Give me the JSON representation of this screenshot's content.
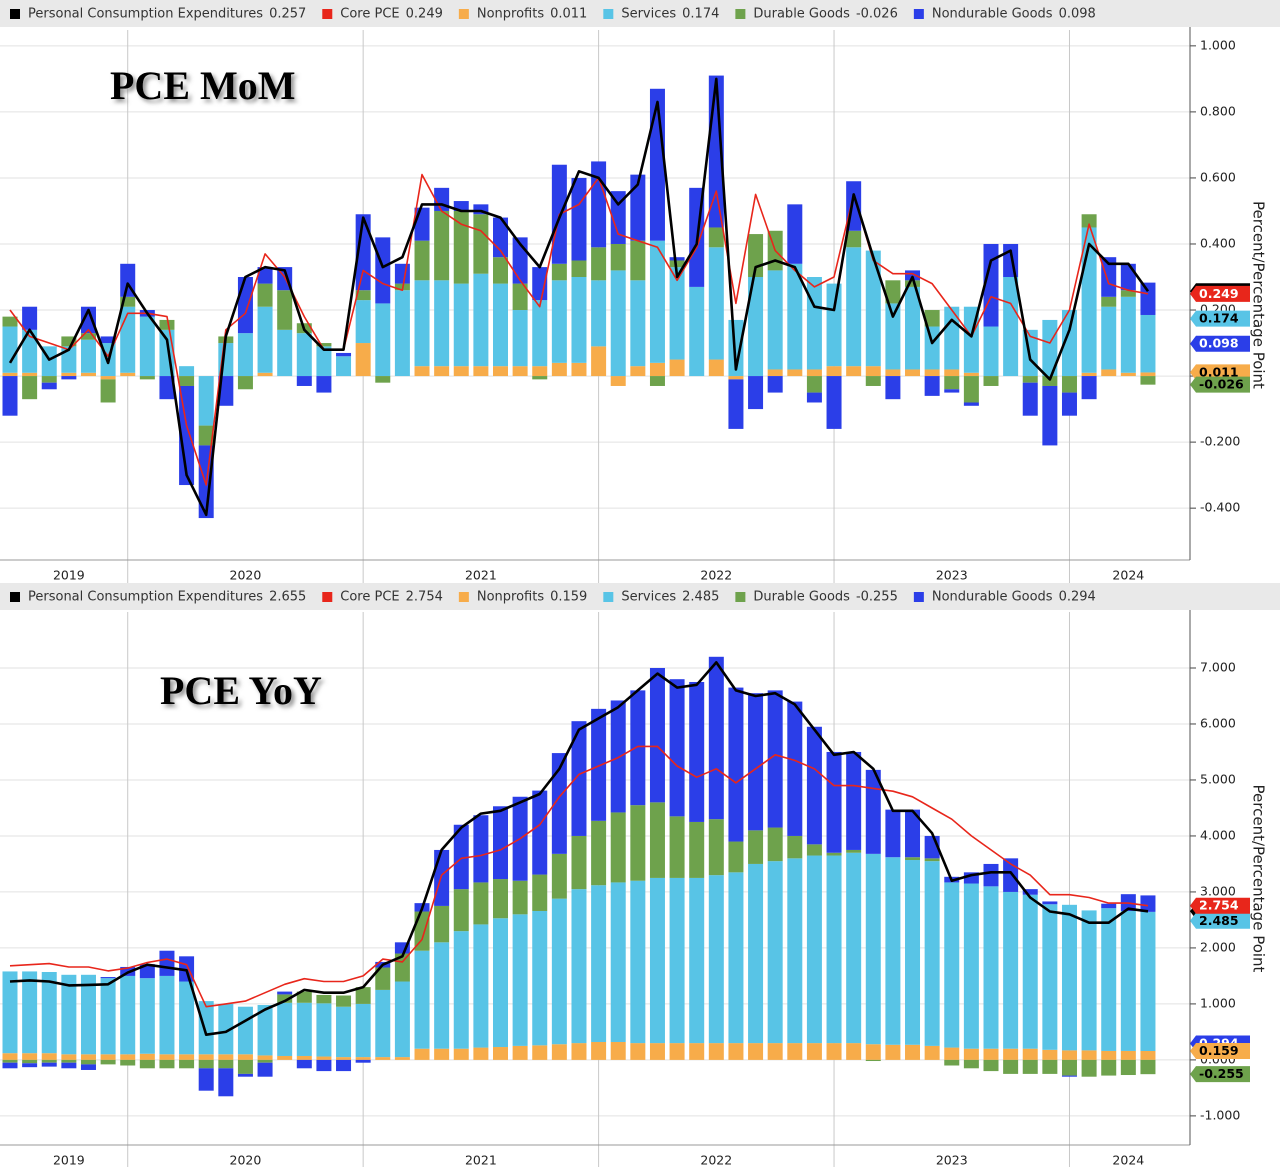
{
  "chart_data": [
    {
      "type": "bar",
      "title": "PCE MoM",
      "y_label": "Percent/Percentage Point",
      "stacked": true,
      "grid": true,
      "categories": [
        null,
        null,
        null,
        "2019",
        null,
        null,
        null,
        null,
        null,
        null,
        null,
        null,
        "2020",
        null,
        null,
        null,
        null,
        null,
        null,
        null,
        null,
        null,
        null,
        null,
        "2021",
        null,
        null,
        null,
        null,
        null,
        null,
        null,
        null,
        null,
        null,
        null,
        "2022",
        null,
        null,
        null,
        null,
        null,
        null,
        null,
        null,
        null,
        null,
        null,
        "2023",
        null,
        null,
        null,
        null,
        null,
        null,
        null,
        null,
        "2024",
        null
      ],
      "ylim": [
        -0.557,
        1.048
      ],
      "yticks": [
        {
          "value": -0.4,
          "label": "-0.400"
        },
        {
          "value": -0.2,
          "label": "-0.200"
        },
        {
          "value": 0,
          "label": "0.000"
        },
        {
          "value": 0.2,
          "label": "0.200"
        },
        {
          "value": 0.4,
          "label": "0.400"
        },
        {
          "value": 0.6,
          "label": "0.600"
        },
        {
          "value": 0.8,
          "label": "0.800"
        },
        {
          "value": 1,
          "label": "1.000"
        }
      ],
      "series": [
        {
          "name": "Personal Consumption Expenditures",
          "color": "#000000",
          "kind": "line",
          "values": [
            0.04,
            0.14,
            0.05,
            0.08,
            0.2,
            0.04,
            0.28,
            0.19,
            0.11,
            -0.3,
            -0.42,
            0.12,
            0.3,
            0.33,
            0.32,
            0.14,
            0.08,
            0.08,
            0.48,
            0.33,
            0.36,
            0.52,
            0.52,
            0.5,
            0.5,
            0.48,
            0.4,
            0.33,
            0.48,
            0.62,
            0.6,
            0.52,
            0.58,
            0.83,
            0.3,
            0.4,
            0.9,
            0.02,
            0.33,
            0.35,
            0.33,
            0.21,
            0.2,
            0.55,
            0.36,
            0.18,
            0.3,
            0.1,
            0.17,
            0.12,
            0.35,
            0.38,
            0.05,
            -0.01,
            0.14,
            0.4,
            0.34,
            0.34,
            0.257
          ]
        },
        {
          "name": "Core PCE",
          "color": "#e8261b",
          "kind": "line",
          "values": [
            0.2,
            0.12,
            0.1,
            0.08,
            0.14,
            0.06,
            0.19,
            0.19,
            0.18,
            -0.15,
            -0.33,
            0.14,
            0.19,
            0.37,
            0.3,
            0.18,
            0.08,
            0.08,
            0.32,
            0.28,
            0.26,
            0.61,
            0.5,
            0.46,
            0.44,
            0.38,
            0.29,
            0.21,
            0.49,
            0.52,
            0.6,
            0.43,
            0.41,
            0.39,
            0.29,
            0.39,
            0.56,
            0.22,
            0.55,
            0.38,
            0.32,
            0.27,
            0.3,
            0.55,
            0.35,
            0.31,
            0.31,
            0.28,
            0.2,
            0.12,
            0.24,
            0.22,
            0.12,
            0.1,
            0.2,
            0.46,
            0.28,
            0.26,
            0.249
          ]
        },
        {
          "name": "Nonprofits",
          "color": "#f7ac4a",
          "kind": "bar",
          "values": [
            0.01,
            0.01,
            0,
            0.01,
            0.01,
            -0.01,
            0.01,
            0,
            0,
            0,
            0,
            0,
            0,
            0.01,
            0,
            0,
            0,
            0,
            0.1,
            0,
            0,
            0.03,
            0.03,
            0.03,
            0.03,
            0.03,
            0.03,
            0.03,
            0.04,
            0.04,
            0.09,
            -0.03,
            0.03,
            0.04,
            0.05,
            0,
            0.05,
            -0.01,
            0,
            0.02,
            0.02,
            0.02,
            0.03,
            0.03,
            0.03,
            0.02,
            0.02,
            0.02,
            0.02,
            0.01,
            0,
            0,
            0,
            0,
            0,
            0.01,
            0.02,
            0.01,
            0.011
          ]
        },
        {
          "name": "Services",
          "color": "#58c4e6",
          "kind": "bar",
          "values": [
            0.14,
            0.13,
            0.09,
            0.08,
            0.1,
            0.1,
            0.2,
            0.18,
            0.14,
            0.03,
            -0.15,
            0.1,
            0.13,
            0.2,
            0.14,
            0.13,
            0.09,
            0.06,
            0.13,
            0.22,
            0.26,
            0.26,
            0.26,
            0.25,
            0.28,
            0.25,
            0.17,
            0.2,
            0.25,
            0.26,
            0.2,
            0.32,
            0.26,
            0.37,
            0.28,
            0.27,
            0.34,
            0.17,
            0.3,
            0.3,
            0.32,
            0.28,
            0.25,
            0.36,
            0.35,
            0.2,
            0.25,
            0.13,
            0.19,
            0.2,
            0.15,
            0.3,
            0.14,
            0.17,
            0.2,
            0.44,
            0.19,
            0.23,
            0.174
          ]
        },
        {
          "name": "Durable Goods",
          "color": "#6ea24c",
          "kind": "bar",
          "values": [
            0.03,
            -0.07,
            -0.02,
            0.03,
            0.02,
            -0.07,
            0.03,
            -0.01,
            0.03,
            -0.03,
            -0.06,
            0.02,
            -0.04,
            0.07,
            0.12,
            0.03,
            0.01,
            0,
            0.03,
            -0.02,
            0.02,
            0.12,
            0.21,
            0.22,
            0.18,
            0.08,
            0.08,
            -0.01,
            0.05,
            0.05,
            0.1,
            0.08,
            0.12,
            -0.03,
            0.02,
            0,
            0.06,
            0,
            0.13,
            0.12,
            0,
            -0.05,
            0,
            0.05,
            -0.03,
            0.07,
            0.02,
            0.05,
            -0.04,
            -0.08,
            -0.03,
            0,
            -0.02,
            -0.03,
            -0.05,
            0.04,
            0.03,
            0.02,
            -0.026
          ]
        },
        {
          "name": "Nondurable Goods",
          "color": "#2b3ee8",
          "kind": "bar",
          "values": [
            -0.12,
            0.07,
            -0.02,
            -0.01,
            0.08,
            0.02,
            0.1,
            0.02,
            -0.07,
            -0.3,
            -0.22,
            -0.09,
            0.17,
            0.05,
            0.07,
            -0.03,
            -0.05,
            0.01,
            0.23,
            0.2,
            0.06,
            0.1,
            0.07,
            0.03,
            0.03,
            0.12,
            0.14,
            0.1,
            0.3,
            0.25,
            0.26,
            0.16,
            0.2,
            0.46,
            0.01,
            0.3,
            0.46,
            -0.15,
            -0.1,
            -0.05,
            0.18,
            -0.03,
            -0.16,
            0.15,
            0,
            -0.07,
            0.03,
            -0.06,
            -0.01,
            -0.01,
            0.25,
            0.1,
            -0.1,
            -0.18,
            -0.07,
            -0.07,
            0.12,
            0.08,
            0.098
          ]
        }
      ]
    },
    {
      "type": "bar",
      "title": "PCE YoY",
      "y_label": "Percent/Percentage Point",
      "stacked": true,
      "grid": true,
      "categories": [
        null,
        null,
        null,
        "2019",
        null,
        null,
        null,
        null,
        null,
        null,
        null,
        null,
        "2020",
        null,
        null,
        null,
        null,
        null,
        null,
        null,
        null,
        null,
        null,
        null,
        "2021",
        null,
        null,
        null,
        null,
        null,
        null,
        null,
        null,
        null,
        null,
        null,
        "2022",
        null,
        null,
        null,
        null,
        null,
        null,
        null,
        null,
        null,
        null,
        null,
        "2023",
        null,
        null,
        null,
        null,
        null,
        null,
        null,
        null,
        "2024",
        null
      ],
      "ylim": [
        -1.52,
        8.0
      ],
      "yticks": [
        {
          "value": -1,
          "label": "-1.000"
        },
        {
          "value": 0,
          "label": "0.000"
        },
        {
          "value": 1,
          "label": "1.000"
        },
        {
          "value": 2,
          "label": "2.000"
        },
        {
          "value": 3,
          "label": "3.000"
        },
        {
          "value": 4,
          "label": "4.000"
        },
        {
          "value": 5,
          "label": "5.000"
        },
        {
          "value": 6,
          "label": "6.000"
        },
        {
          "value": 7,
          "label": "7.000"
        }
      ],
      "series": [
        {
          "name": "Personal Consumption Expenditures",
          "color": "#000000",
          "kind": "line",
          "values": [
            1.4,
            1.42,
            1.4,
            1.33,
            1.34,
            1.35,
            1.56,
            1.7,
            1.65,
            1.6,
            0.45,
            0.5,
            0.7,
            0.9,
            1.05,
            1.25,
            1.2,
            1.2,
            1.3,
            1.7,
            1.85,
            2.7,
            3.75,
            4.15,
            4.4,
            4.45,
            4.6,
            4.75,
            5.2,
            5.9,
            6.1,
            6.3,
            6.6,
            6.9,
            6.65,
            6.7,
            7.1,
            6.6,
            6.5,
            6.55,
            6.35,
            5.9,
            5.45,
            5.5,
            5.2,
            4.45,
            4.45,
            4.05,
            3.2,
            3.3,
            3.35,
            3.35,
            2.9,
            2.65,
            2.6,
            2.45,
            2.45,
            2.7,
            2.655
          ]
        },
        {
          "name": "Core PCE",
          "color": "#e8261b",
          "kind": "line",
          "values": [
            1.68,
            1.7,
            1.72,
            1.66,
            1.66,
            1.59,
            1.64,
            1.74,
            1.8,
            1.7,
            0.95,
            1.0,
            1.05,
            1.2,
            1.35,
            1.45,
            1.4,
            1.4,
            1.5,
            1.8,
            1.75,
            2.15,
            3.3,
            3.6,
            3.65,
            3.75,
            3.95,
            4.2,
            4.7,
            5.1,
            5.25,
            5.4,
            5.6,
            5.6,
            5.25,
            5.05,
            5.2,
            4.95,
            5.2,
            5.45,
            5.35,
            5.2,
            4.9,
            4.9,
            4.85,
            4.8,
            4.7,
            4.5,
            4.3,
            4.0,
            3.75,
            3.5,
            3.3,
            2.95,
            2.95,
            2.9,
            2.8,
            2.8,
            2.754
          ]
        },
        {
          "name": "Nonprofits",
          "color": "#f7ac4a",
          "kind": "bar",
          "values": [
            0.12,
            0.12,
            0.12,
            0.1,
            0.1,
            0.1,
            0.1,
            0.11,
            0.1,
            0.1,
            0.1,
            0.1,
            0.1,
            0.08,
            0.07,
            0.07,
            0.06,
            0.05,
            0.05,
            0.05,
            0.05,
            0.2,
            0.2,
            0.2,
            0.22,
            0.23,
            0.25,
            0.26,
            0.28,
            0.3,
            0.32,
            0.32,
            0.3,
            0.3,
            0.3,
            0.3,
            0.3,
            0.3,
            0.3,
            0.3,
            0.3,
            0.3,
            0.3,
            0.3,
            0.28,
            0.27,
            0.27,
            0.25,
            0.22,
            0.2,
            0.2,
            0.2,
            0.2,
            0.18,
            0.17,
            0.17,
            0.16,
            0.16,
            0.159
          ]
        },
        {
          "name": "Services",
          "color": "#58c4e6",
          "kind": "bar",
          "values": [
            1.46,
            1.46,
            1.45,
            1.42,
            1.42,
            1.36,
            1.4,
            1.35,
            1.4,
            1.3,
            0.95,
            0.9,
            0.85,
            0.9,
            0.95,
            0.95,
            0.95,
            0.9,
            0.95,
            1.2,
            1.35,
            1.75,
            1.9,
            2.1,
            2.2,
            2.3,
            2.35,
            2.4,
            2.6,
            2.75,
            2.8,
            2.85,
            2.9,
            2.95,
            2.95,
            2.95,
            3.0,
            3.05,
            3.2,
            3.25,
            3.3,
            3.35,
            3.35,
            3.4,
            3.4,
            3.35,
            3.3,
            3.3,
            2.95,
            2.95,
            2.9,
            2.8,
            2.75,
            2.6,
            2.6,
            2.5,
            2.55,
            2.5,
            2.485
          ]
        },
        {
          "name": "Durable Goods",
          "color": "#6ea24c",
          "kind": "bar",
          "values": [
            -0.05,
            -0.06,
            -0.05,
            -0.05,
            -0.08,
            -0.08,
            -0.1,
            -0.15,
            -0.15,
            -0.15,
            -0.15,
            -0.15,
            -0.25,
            -0.05,
            0.15,
            0.2,
            0.15,
            0.2,
            0.3,
            0.4,
            0.5,
            0.7,
            0.65,
            0.75,
            0.75,
            0.7,
            0.6,
            0.65,
            0.8,
            0.95,
            1.15,
            1.25,
            1.35,
            1.35,
            1.1,
            1.0,
            1.0,
            0.55,
            0.6,
            0.6,
            0.4,
            0.2,
            0.05,
            0.05,
            -0.02,
            0,
            0.05,
            0.05,
            -0.1,
            -0.15,
            -0.2,
            -0.25,
            -0.25,
            -0.25,
            -0.28,
            -0.3,
            -0.28,
            -0.27,
            -0.255
          ]
        },
        {
          "name": "Nondurable Goods",
          "color": "#2b3ee8",
          "kind": "bar",
          "values": [
            -0.1,
            -0.07,
            -0.07,
            -0.1,
            -0.1,
            0.02,
            0.16,
            0.25,
            0.45,
            0.45,
            -0.4,
            -0.5,
            -0.05,
            -0.25,
            0.05,
            -0.15,
            -0.2,
            -0.2,
            -0.05,
            0.1,
            0.2,
            0.15,
            1.0,
            1.15,
            1.2,
            1.3,
            1.5,
            1.5,
            1.8,
            2.05,
            2.0,
            2.0,
            2.05,
            2.4,
            2.45,
            2.5,
            2.9,
            2.75,
            2.45,
            2.45,
            2.4,
            2.1,
            1.8,
            1.75,
            1.5,
            0.85,
            0.85,
            0.4,
            0.1,
            0.2,
            0.4,
            0.6,
            0.1,
            0.05,
            -0.02,
            0,
            0.08,
            0.3,
            0.294
          ]
        }
      ]
    }
  ]
}
